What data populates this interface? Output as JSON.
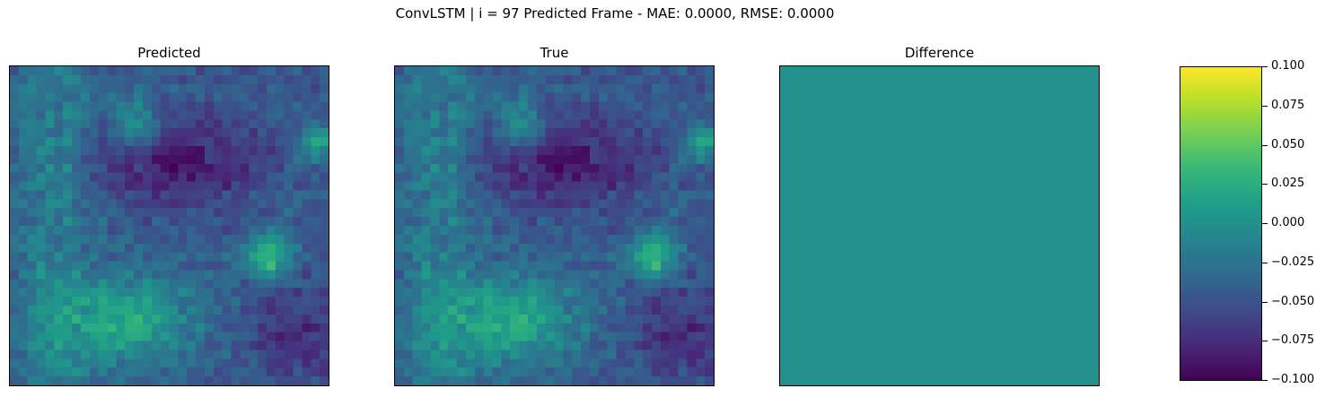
{
  "suptitle": "ConvLSTM | i = 97 Predicted Frame - MAE: 0.0000, RMSE: 0.0000",
  "panels": {
    "predicted": {
      "title": "Predicted"
    },
    "true": {
      "title": "True"
    },
    "difference": {
      "title": "Difference"
    }
  },
  "chart_data": {
    "type": "heatmap",
    "colormap": "viridis",
    "grid": [
      36,
      36
    ],
    "difference_value": 0.0,
    "colorbar": {
      "range": [
        -0.1,
        0.1
      ],
      "ticks": [
        "0.100",
        "0.075",
        "0.050",
        "0.025",
        "0.000",
        "−0.025",
        "−0.050",
        "−0.075",
        "−0.100"
      ]
    },
    "colors": {
      "low": "#440154",
      "mid": "#21918c",
      "high": "#fde725"
    }
  }
}
